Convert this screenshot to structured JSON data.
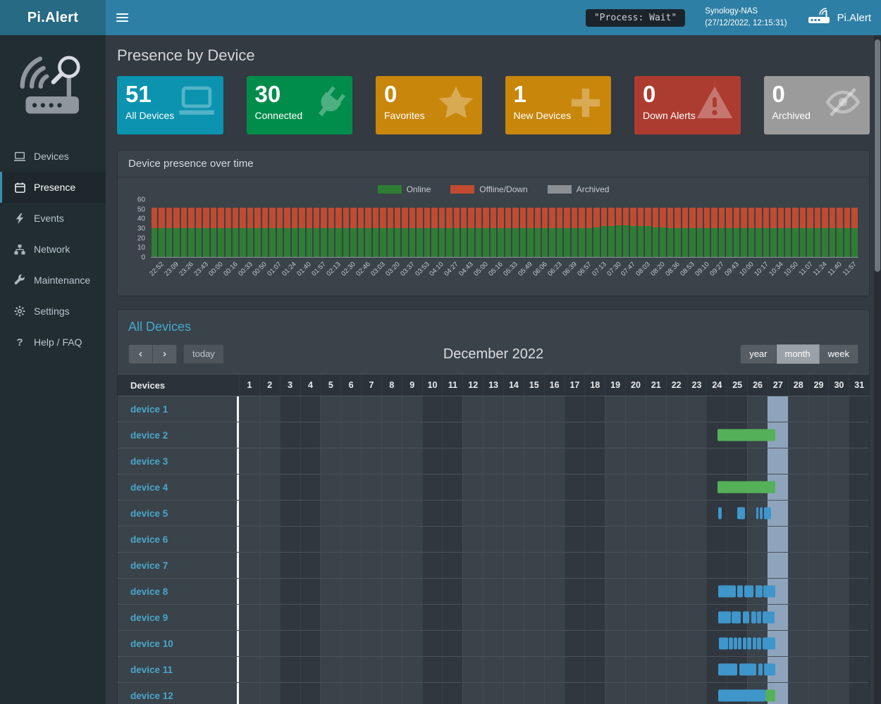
{
  "topbar": {
    "brand": "Pi.Alert",
    "process_status": "\"Process: Wait\"",
    "host_name": "Synology-NAS",
    "host_time": "(27/12/2022, 12:15:31)",
    "brand_right": "Pi.Alert"
  },
  "sidebar": {
    "items": [
      {
        "label": "Devices",
        "active": false
      },
      {
        "label": "Presence",
        "active": true
      },
      {
        "label": "Events",
        "active": false
      },
      {
        "label": "Network",
        "active": false
      },
      {
        "label": "Maintenance",
        "active": false
      },
      {
        "label": "Settings",
        "active": false
      },
      {
        "label": "Help / FAQ",
        "active": false
      }
    ]
  },
  "page": {
    "title": "Presence by Device"
  },
  "cards": [
    {
      "value": "51",
      "label": "All Devices",
      "color": "#0b93af",
      "icon": "laptop-icon"
    },
    {
      "value": "30",
      "label": "Connected",
      "color": "#008d4c",
      "icon": "plug-icon"
    },
    {
      "value": "0",
      "label": "Favorites",
      "color": "#c8860b",
      "icon": "star-icon"
    },
    {
      "value": "1",
      "label": "New Devices",
      "color": "#c8860b",
      "icon": "plus-icon"
    },
    {
      "value": "0",
      "label": "Down Alerts",
      "color": "#ad3c30",
      "icon": "warning-icon"
    },
    {
      "value": "0",
      "label": "Archived",
      "color": "#9b9b9b",
      "icon": "eye-slash-icon"
    }
  ],
  "chart_data": {
    "type": "bar",
    "stacked": true,
    "title": "Device presence over time",
    "legend_position": "top",
    "ylim": [
      0,
      60
    ],
    "y_ticks": [
      0,
      10,
      20,
      30,
      40,
      50,
      60
    ],
    "bars_per_tick": 2,
    "x_tick_labels": [
      "22:52",
      "23:09",
      "23:26",
      "23:43",
      "00:00",
      "00:16",
      "00:33",
      "00:50",
      "01:07",
      "01:24",
      "01:40",
      "01:57",
      "02:13",
      "02:30",
      "02:46",
      "03:03",
      "03:20",
      "03:37",
      "03:53",
      "04:10",
      "04:27",
      "04:43",
      "05:00",
      "05:16",
      "05:33",
      "05:49",
      "06:06",
      "06:23",
      "06:39",
      "06:57",
      "07:13",
      "07:30",
      "07:47",
      "08:03",
      "08:20",
      "08:36",
      "08:53",
      "09:10",
      "09:27",
      "09:43",
      "10:00",
      "10:17",
      "10:34",
      "10:50",
      "11:07",
      "11:24",
      "11:40",
      "11:57"
    ],
    "series": [
      {
        "name": "Online",
        "color": "#2e7d33",
        "values": [
          30,
          30,
          30,
          30,
          30,
          30,
          30,
          30,
          30,
          30,
          30,
          30,
          30,
          30,
          30,
          30,
          30,
          30,
          30,
          30,
          30,
          30,
          30,
          30,
          30,
          30,
          30,
          30,
          30,
          30,
          30,
          30,
          30,
          30,
          30,
          30,
          30,
          30,
          30,
          30,
          30,
          30,
          30,
          30,
          30,
          30,
          30,
          30,
          30,
          30,
          30,
          30,
          30,
          30,
          30,
          30,
          30,
          30,
          30,
          30,
          31,
          32,
          32,
          33,
          33,
          32,
          32,
          32,
          31,
          31,
          30,
          30,
          30,
          30,
          30,
          30,
          30,
          30,
          30,
          30,
          30,
          30,
          30,
          30,
          30,
          30,
          30,
          30,
          30,
          30,
          30,
          30,
          30,
          30,
          30,
          30
        ]
      },
      {
        "name": "Offline/Down",
        "color": "#c04b30",
        "values": [
          21,
          21,
          21,
          21,
          21,
          21,
          21,
          21,
          21,
          21,
          21,
          21,
          21,
          21,
          21,
          21,
          21,
          21,
          21,
          21,
          21,
          21,
          21,
          21,
          21,
          21,
          21,
          21,
          21,
          21,
          21,
          21,
          21,
          21,
          21,
          21,
          21,
          21,
          21,
          21,
          21,
          21,
          21,
          21,
          21,
          21,
          21,
          21,
          21,
          21,
          21,
          21,
          21,
          21,
          21,
          21,
          21,
          21,
          21,
          21,
          20,
          19,
          19,
          18,
          18,
          19,
          19,
          19,
          20,
          20,
          21,
          21,
          21,
          21,
          21,
          21,
          21,
          21,
          21,
          21,
          21,
          21,
          21,
          21,
          21,
          21,
          21,
          21,
          21,
          21,
          21,
          21,
          21,
          21,
          21,
          21
        ]
      },
      {
        "name": "Archived",
        "color": "#8a8f94",
        "constant_value": 0,
        "values": []
      }
    ]
  },
  "calendar": {
    "title": "All Devices",
    "header_label": "Devices",
    "toolbar": {
      "prev": "‹",
      "next": "›",
      "today": "today",
      "month_title": "December 2022",
      "views": [
        "year",
        "month",
        "week"
      ],
      "active_view": "month"
    },
    "days": 31,
    "weekend_days": [
      3,
      4,
      10,
      11,
      17,
      18,
      24,
      25,
      31
    ],
    "today_day": 27,
    "colors": {
      "online": "#55b05a",
      "event": "#3e96cb",
      "today_column": "#8ea4bc"
    },
    "devices": [
      {
        "name": "device 1",
        "segments": []
      },
      {
        "name": "device 2",
        "segments": [
          {
            "start": 24.55,
            "end": 27.4,
            "type": "online"
          }
        ]
      },
      {
        "name": "device 3",
        "segments": []
      },
      {
        "name": "device 4",
        "segments": [
          {
            "start": 24.55,
            "end": 27.4,
            "type": "online"
          }
        ]
      },
      {
        "name": "device 5",
        "segments": [
          {
            "start": 24.58,
            "end": 24.75,
            "type": "event"
          },
          {
            "start": 25.52,
            "end": 25.91,
            "type": "event"
          },
          {
            "start": 26.44,
            "end": 26.57,
            "type": "event"
          },
          {
            "start": 26.64,
            "end": 26.75,
            "type": "event"
          },
          {
            "start": 26.82,
            "end": 27.18,
            "type": "event"
          }
        ]
      },
      {
        "name": "device 6",
        "segments": []
      },
      {
        "name": "device 7",
        "segments": []
      },
      {
        "name": "device 8",
        "segments": [
          {
            "start": 24.58,
            "end": 25.45,
            "type": "event"
          },
          {
            "start": 25.5,
            "end": 25.8,
            "type": "event"
          },
          {
            "start": 25.85,
            "end": 26.3,
            "type": "event"
          },
          {
            "start": 26.4,
            "end": 26.75,
            "type": "event"
          },
          {
            "start": 26.8,
            "end": 27.38,
            "type": "event"
          }
        ]
      },
      {
        "name": "device 9",
        "segments": [
          {
            "start": 24.58,
            "end": 25.2,
            "type": "event"
          },
          {
            "start": 25.25,
            "end": 25.7,
            "type": "event"
          },
          {
            "start": 25.8,
            "end": 26.1,
            "type": "event"
          },
          {
            "start": 26.2,
            "end": 26.45,
            "type": "event"
          },
          {
            "start": 26.5,
            "end": 26.7,
            "type": "event"
          },
          {
            "start": 26.78,
            "end": 27.35,
            "type": "event"
          }
        ]
      },
      {
        "name": "device 10",
        "segments": [
          {
            "start": 24.62,
            "end": 25.05,
            "type": "event"
          },
          {
            "start": 25.1,
            "end": 25.3,
            "type": "event"
          },
          {
            "start": 25.35,
            "end": 25.5,
            "type": "event"
          },
          {
            "start": 25.55,
            "end": 25.72,
            "type": "event"
          },
          {
            "start": 25.78,
            "end": 25.95,
            "type": "event"
          },
          {
            "start": 26.0,
            "end": 26.2,
            "type": "event"
          },
          {
            "start": 26.28,
            "end": 26.45,
            "type": "event"
          },
          {
            "start": 26.5,
            "end": 26.68,
            "type": "event"
          },
          {
            "start": 26.75,
            "end": 27.4,
            "type": "event"
          }
        ]
      },
      {
        "name": "device 11",
        "segments": [
          {
            "start": 24.58,
            "end": 25.5,
            "type": "event"
          },
          {
            "start": 25.62,
            "end": 26.45,
            "type": "event"
          },
          {
            "start": 26.55,
            "end": 26.75,
            "type": "event"
          },
          {
            "start": 26.82,
            "end": 27.38,
            "type": "event"
          }
        ]
      },
      {
        "name": "device 12",
        "segments": [
          {
            "start": 24.58,
            "end": 26.9,
            "type": "event"
          },
          {
            "start": 26.9,
            "end": 27.4,
            "type": "online"
          }
        ]
      }
    ]
  }
}
